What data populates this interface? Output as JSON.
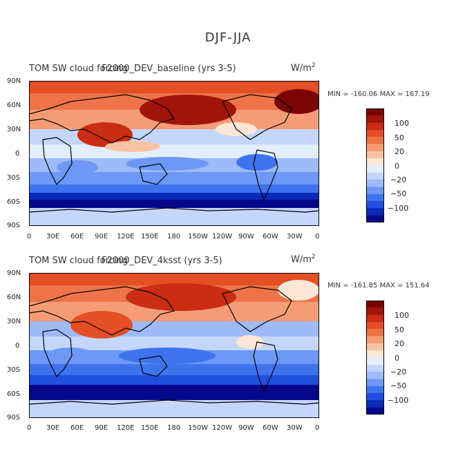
{
  "suptitle": "DJF-JJA",
  "colors": {
    "scale": [
      "#05088a",
      "#0a2ab8",
      "#1f4fdc",
      "#3f73ee",
      "#6d98f5",
      "#9fbaf8",
      "#c4d6fb",
      "#e3eefc",
      "#fde6d6",
      "#f9c2a4",
      "#f59c76",
      "#ee7447",
      "#e44f25",
      "#ca2d12",
      "#a2140a",
      "#7a0404"
    ],
    "land": "#000000"
  },
  "panels": [
    {
      "title_left": "TOM SW cloud forcing",
      "title_overlap": "F2000_DEV_baseline (yrs 3-5)",
      "units": "W/m",
      "units_sup": "2",
      "minmax": "MIN = -160.06  MAX = 167.19"
    },
    {
      "title_left": "TOM SW cloud forcing",
      "title_overlap": "F2000_DEV_4ksst (yrs 3-5)",
      "units": "W/m",
      "units_sup": "2",
      "minmax": "MIN = -161.85  MAX = 151.64"
    }
  ],
  "lat_labels": [
    "90N",
    "60N",
    "30N",
    "0",
    "30S",
    "60S",
    "90S"
  ],
  "lon_labels": [
    "0",
    "30E",
    "60E",
    "90E",
    "120E",
    "150E",
    "180",
    "150W",
    "120W",
    "90W",
    "60W",
    "30W",
    "0"
  ],
  "colorbar_labels": [
    "100",
    "50",
    "20",
    "0",
    "−20",
    "−50",
    "−100"
  ]
}
